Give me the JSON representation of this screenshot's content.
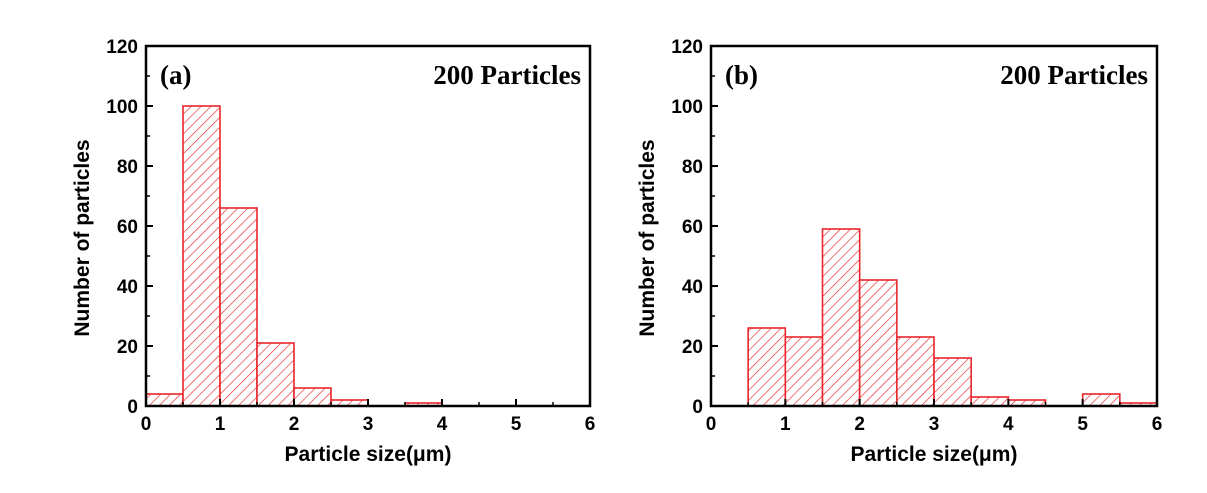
{
  "chart_data": [
    {
      "type": "bar",
      "panel_label": "(a)",
      "annotation": "200 Particles",
      "xlabel": "Particle size(μm)",
      "ylabel": "Number of particles",
      "xlim": [
        0,
        6
      ],
      "ylim": [
        0,
        120
      ],
      "xticks": [
        "0",
        "1",
        "2",
        "3",
        "4",
        "5",
        "6"
      ],
      "yticks": [
        "0",
        "20",
        "40",
        "60",
        "80",
        "100",
        "120"
      ],
      "bin_width": 0.5,
      "bins": [
        {
          "start": 0.0,
          "value": 4
        },
        {
          "start": 0.5,
          "value": 100
        },
        {
          "start": 1.0,
          "value": 66
        },
        {
          "start": 1.5,
          "value": 21
        },
        {
          "start": 2.0,
          "value": 6
        },
        {
          "start": 2.5,
          "value": 2
        },
        {
          "start": 3.0,
          "value": 0
        },
        {
          "start": 3.5,
          "value": 1
        },
        {
          "start": 4.0,
          "value": 0
        },
        {
          "start": 4.5,
          "value": 0
        },
        {
          "start": 5.0,
          "value": 0
        },
        {
          "start": 5.5,
          "value": 0
        }
      ],
      "color": "#e8262c",
      "fill": "hatched"
    },
    {
      "type": "bar",
      "panel_label": "(b)",
      "annotation": "200 Particles",
      "xlabel": "Particle size(μm)",
      "ylabel": "Number of particles",
      "xlim": [
        0,
        6
      ],
      "ylim": [
        0,
        120
      ],
      "xticks": [
        "0",
        "1",
        "2",
        "3",
        "4",
        "5",
        "6"
      ],
      "yticks": [
        "0",
        "20",
        "40",
        "60",
        "80",
        "100",
        "120"
      ],
      "bin_width": 0.5,
      "bins": [
        {
          "start": 0.5,
          "value": 26
        },
        {
          "start": 1.0,
          "value": 23
        },
        {
          "start": 1.5,
          "value": 59
        },
        {
          "start": 2.0,
          "value": 42
        },
        {
          "start": 2.5,
          "value": 23
        },
        {
          "start": 3.0,
          "value": 16
        },
        {
          "start": 3.5,
          "value": 3
        },
        {
          "start": 4.0,
          "value": 2
        },
        {
          "start": 4.5,
          "value": 0
        },
        {
          "start": 5.0,
          "value": 4
        },
        {
          "start": 5.5,
          "value": 1
        }
      ],
      "color": "#e8262c",
      "fill": "hatched"
    }
  ]
}
